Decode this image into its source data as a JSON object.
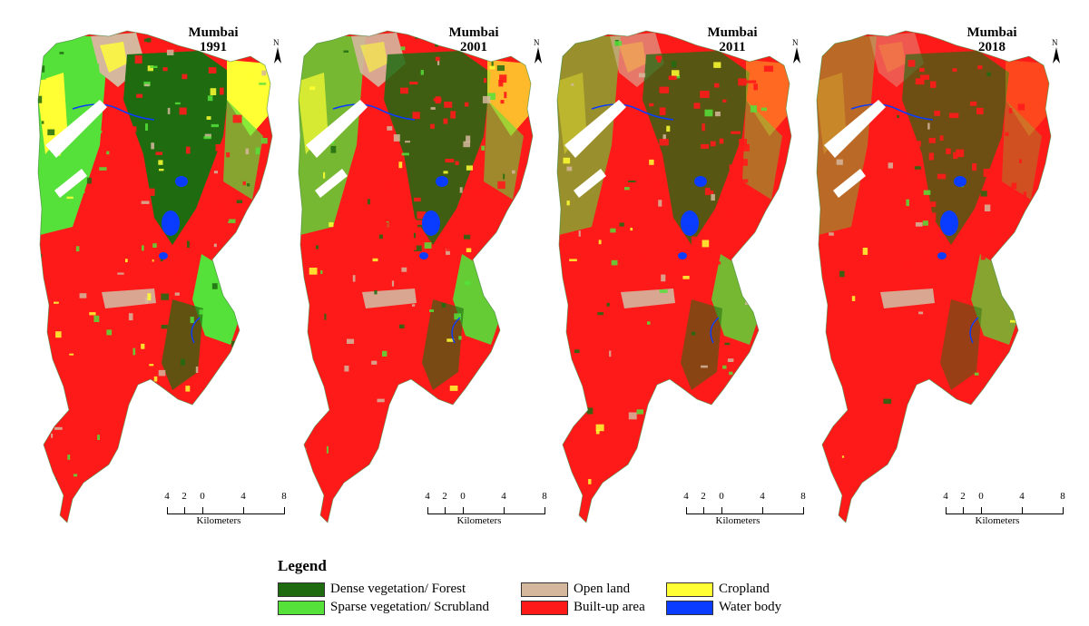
{
  "maps": [
    {
      "city": "Mumbai",
      "year": "1991"
    },
    {
      "city": "Mumbai",
      "year": "2001"
    },
    {
      "city": "Mumbai",
      "year": "2011"
    },
    {
      "city": "Mumbai",
      "year": "2018"
    }
  ],
  "north_label": "N",
  "scale_bar": {
    "ticks": [
      "4",
      "2",
      "0",
      "4",
      "8"
    ],
    "unit": "Kilometers"
  },
  "legend": {
    "title": "Legend",
    "items": [
      {
        "label": "Dense vegetation/ Forest",
        "color": "#1f6b10"
      },
      {
        "label": "Sparse vegetation/ Scrubland",
        "color": "#55e03a"
      },
      {
        "label": "Open land",
        "color": "#d5b79e"
      },
      {
        "label": "Built-up area",
        "color": "#ff1a1a"
      },
      {
        "label": "Cropland",
        "color": "#ffff33"
      },
      {
        "label": "Water body",
        "color": "#0a3cff"
      }
    ]
  }
}
